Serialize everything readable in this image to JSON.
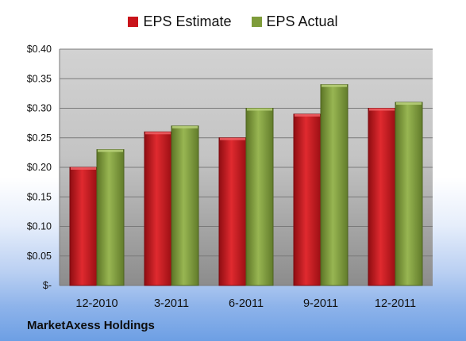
{
  "brand": "MarketAxess Holdings",
  "chart_data": {
    "type": "bar",
    "categories": [
      "12-2010",
      "3-2011",
      "6-2011",
      "9-2011",
      "12-2011"
    ],
    "series": [
      {
        "name": "EPS Estimate",
        "color": "#c9141b",
        "values": [
          0.2,
          0.26,
          0.25,
          0.29,
          0.3
        ]
      },
      {
        "name": "EPS Actual",
        "color": "#7e9c3a",
        "values": [
          0.23,
          0.27,
          0.3,
          0.34,
          0.31
        ]
      }
    ],
    "ylim": [
      0,
      0.4
    ],
    "yticks": [
      {
        "value": 0.4,
        "label": "$0.40"
      },
      {
        "value": 0.35,
        "label": "$0.35"
      },
      {
        "value": 0.3,
        "label": "$0.30"
      },
      {
        "value": 0.25,
        "label": "$0.25"
      },
      {
        "value": 0.2,
        "label": "$0.20"
      },
      {
        "value": 0.15,
        "label": "$0.15"
      },
      {
        "value": 0.1,
        "label": "$0.10"
      },
      {
        "value": 0.05,
        "label": "$0.05"
      },
      {
        "value": 0,
        "label": "$-"
      }
    ],
    "grid": true,
    "legend": "top-center"
  }
}
